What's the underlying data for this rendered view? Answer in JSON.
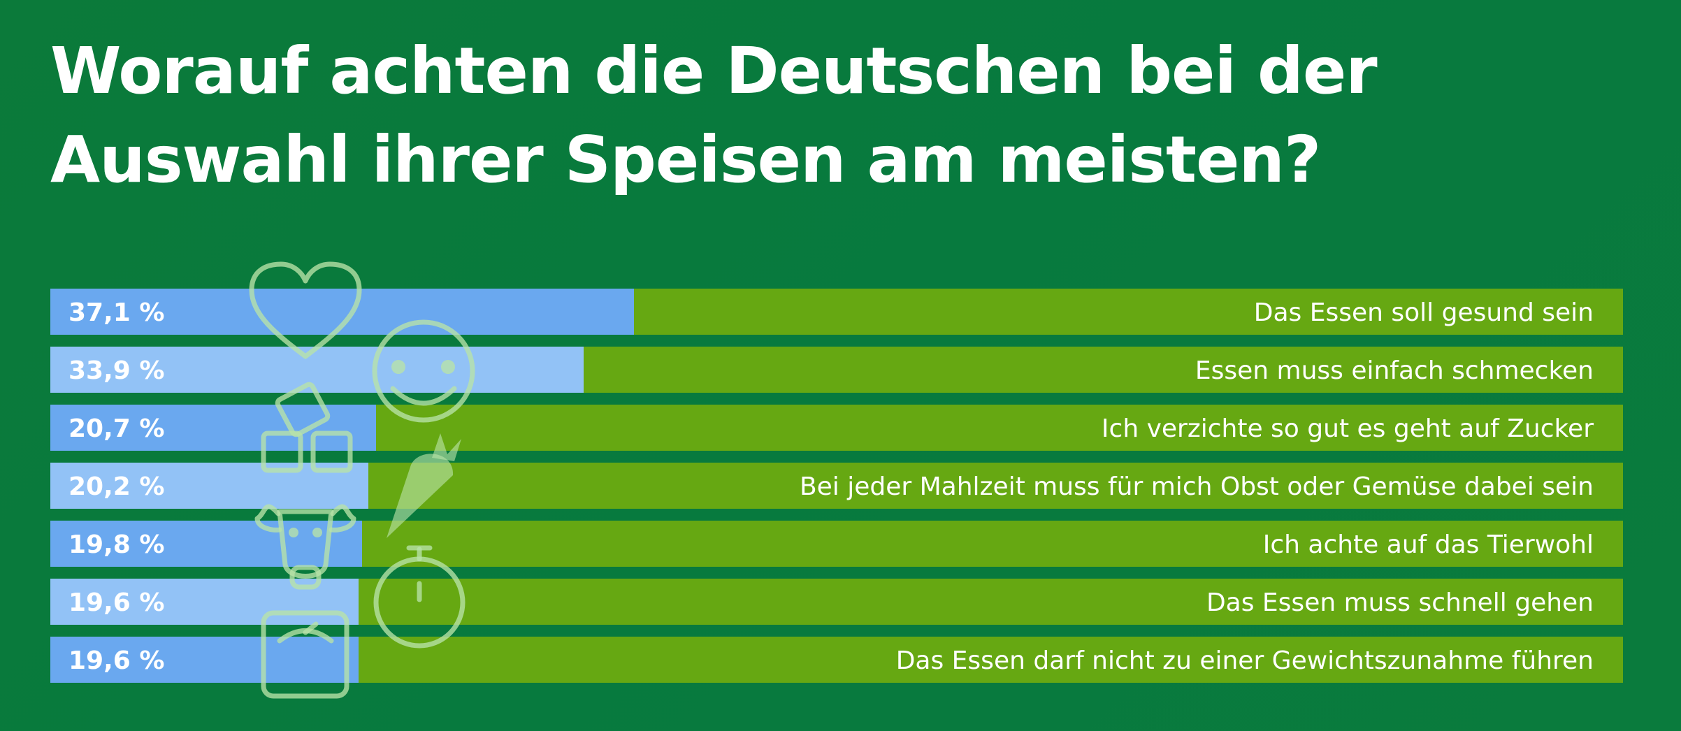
{
  "title_lines": [
    "Worauf achten die Deutschen bei der",
    "Auswahl ihrer Speisen am meisten?"
  ],
  "colors": {
    "background": "#077a3e",
    "bar_value_dark": "#6aa8ef",
    "bar_value_light": "#92c2f6",
    "bar_remainder": "#66a812",
    "text": "#ffffff",
    "icon_stroke": "#b9e3a8"
  },
  "icons": [
    "heart-icon",
    "smiley-icon",
    "sugar-cubes-icon",
    "carrot-icon",
    "cow-icon",
    "stopwatch-icon",
    "scale-icon"
  ],
  "chart_data": {
    "type": "bar",
    "orientation": "horizontal",
    "stacked_to_100": true,
    "xlim": [
      0,
      100
    ],
    "unit": "%",
    "categories": [
      "Das Essen soll gesund sein",
      "Essen muss einfach schmecken",
      "Ich verzichte so gut es geht auf Zucker",
      "Bei jeder Mahlzeit muss für mich Obst oder Gemüse dabei sein",
      "Ich achte auf das Tierwohl",
      "Das Essen muss schnell gehen",
      "Das Essen darf nicht zu einer Gewichtszunahme führen"
    ],
    "values": [
      37.1,
      33.9,
      20.7,
      20.2,
      19.8,
      19.6,
      19.6
    ],
    "value_labels": [
      "37,1 %",
      "33,9 %",
      "20,7 %",
      "20,2 %",
      "19,8 %",
      "19,6 %",
      "19,6 %"
    ]
  }
}
